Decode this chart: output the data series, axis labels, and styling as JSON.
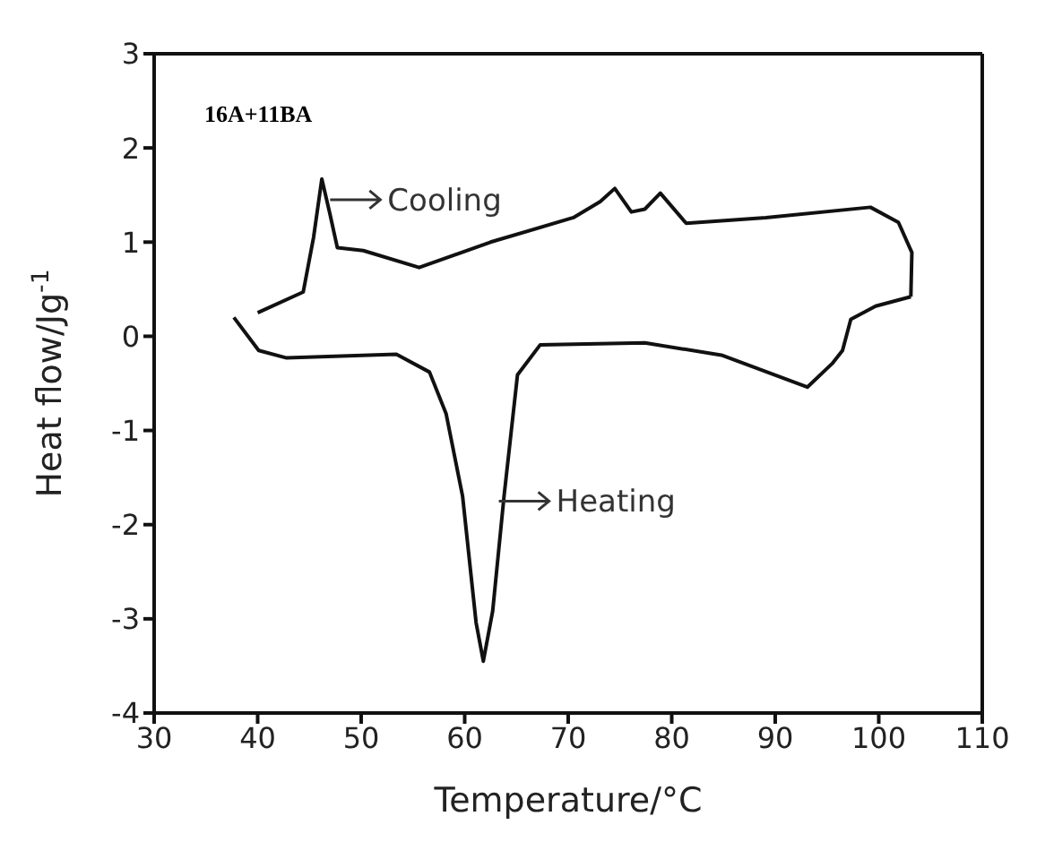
{
  "chart_data": {
    "type": "line",
    "xlabel": "Temperature/°C",
    "ylabel": "Heat  flow/Jg$^{-1}$",
    "xlim": [
      30,
      110
    ],
    "xticks": [
      30,
      40,
      50,
      60,
      70,
      80,
      90,
      100,
      110
    ],
    "ylim": [
      -4,
      3
    ],
    "yticks": [
      -4,
      -3,
      -2,
      -1,
      0,
      1,
      2,
      3
    ],
    "marker": "none",
    "line_style": "solid",
    "annotations": [
      "16A+11BA",
      {
        "text": "Cooling",
        "x": 47,
        "y": 1.45
      },
      {
        "text": "Heating",
        "x": 63.3,
        "y": -1.75
      }
    ],
    "series": [
      {
        "color": "#111111",
        "x": [
          37.7,
          40.1,
          42.8,
          53.4,
          56.6,
          58.2,
          59.8,
          61.1,
          61.8,
          62.7,
          63.8,
          65.1,
          67.3,
          77.4,
          84.8,
          93.1,
          95.5,
          96.5,
          97.3,
          99.7,
          103.1
        ],
        "values": [
          0.2,
          -0.15,
          -0.23,
          -0.19,
          -0.38,
          -0.82,
          -1.7,
          -3.04,
          -3.45,
          -2.92,
          -1.7,
          -0.41,
          -0.09,
          -0.07,
          -0.2,
          -0.54,
          -0.29,
          -0.15,
          0.18,
          0.32,
          0.42
        ]
      },
      {
        "color": "#111111",
        "x": [
          103.1,
          103.2,
          101.9,
          99.2,
          89.1,
          81.4,
          78.9,
          77.4,
          76.1,
          74.5,
          73.1,
          70.5,
          62.5,
          55.6,
          50.2,
          47.7,
          47.0,
          46.2,
          45.4,
          44.4,
          40.0
        ],
        "values": [
          0.42,
          0.89,
          1.21,
          1.37,
          1.26,
          1.2,
          1.52,
          1.35,
          1.32,
          1.57,
          1.43,
          1.26,
          1.0,
          0.73,
          0.91,
          0.94,
          1.29,
          1.67,
          1.05,
          0.47,
          0.25
        ]
      }
    ]
  }
}
